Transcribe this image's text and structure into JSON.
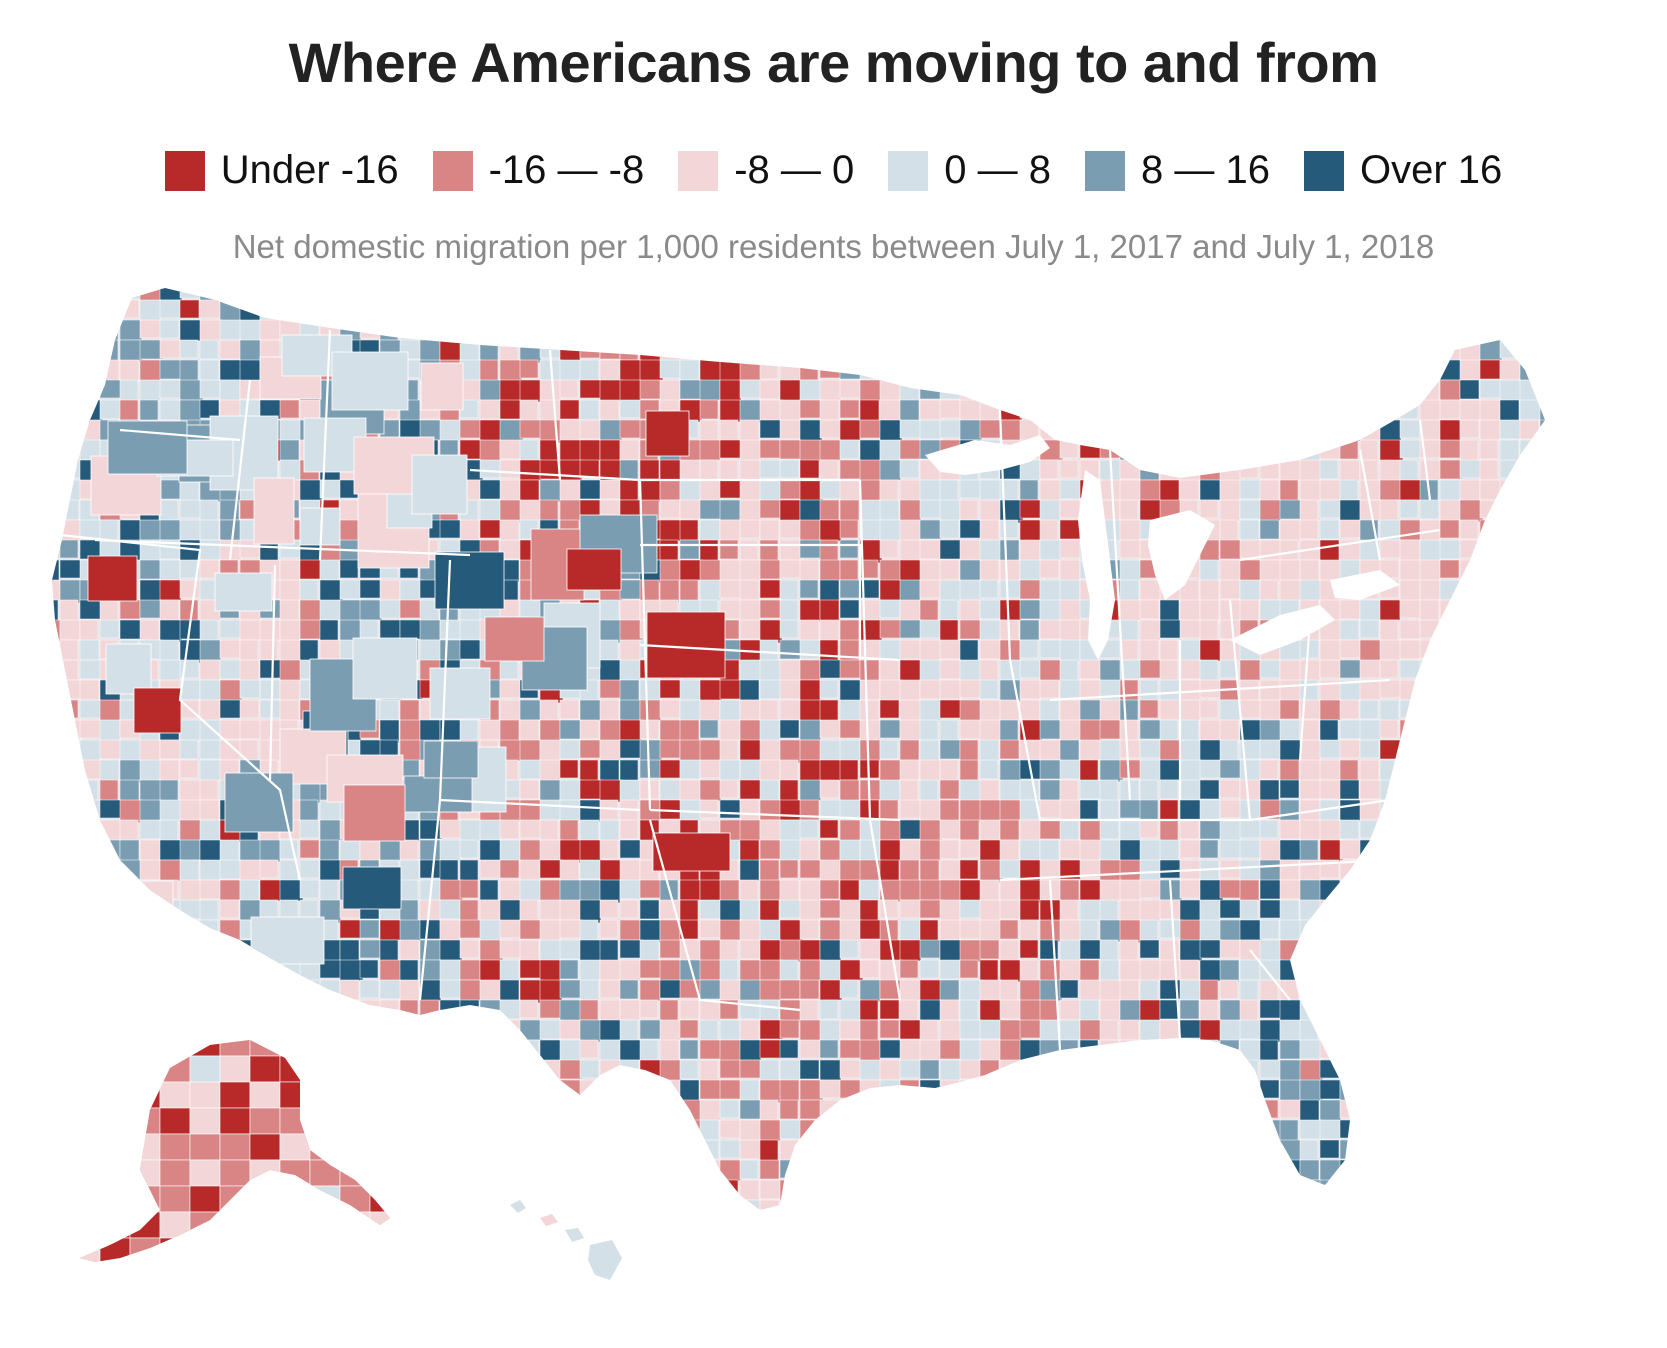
{
  "title": "Where Americans are moving to and from",
  "subtitle": "Net domestic migration per 1,000 residents between July 1, 2017 and July 1, 2018",
  "legend": [
    {
      "label": "Under -16",
      "color": "#b82a2a"
    },
    {
      "label": "-16 — -8",
      "color": "#d98585"
    },
    {
      "label": "-8 — 0",
      "color": "#f2d6d8"
    },
    {
      "label": "0 — 8",
      "color": "#d4e0e7"
    },
    {
      "label": "8 — 16",
      "color": "#7b9db2"
    },
    {
      "label": "Over 16",
      "color": "#255a7a"
    }
  ],
  "map": {
    "type": "choropleth",
    "geography": "US counties",
    "regions": [
      "contiguous-us",
      "alaska",
      "hawaii"
    ]
  }
}
